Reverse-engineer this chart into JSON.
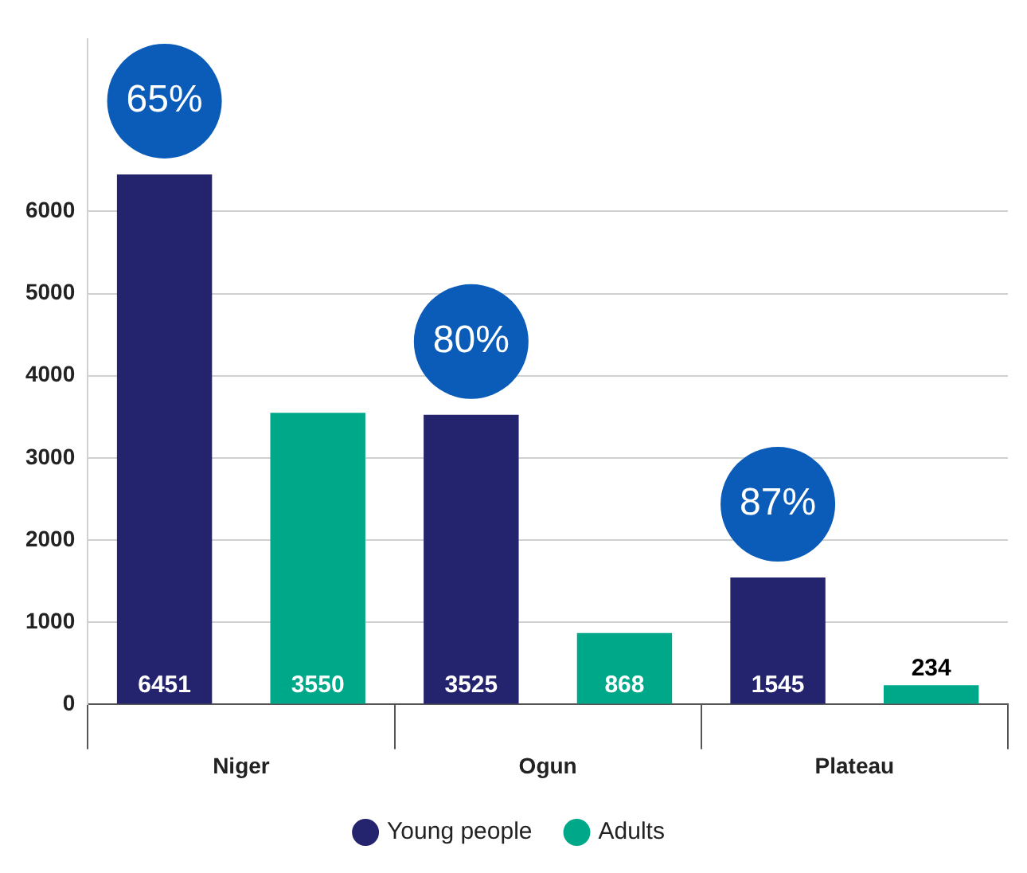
{
  "chart_data": {
    "type": "bar",
    "categories": [
      "Niger",
      "Ogun",
      "Plateau"
    ],
    "series": [
      {
        "name": "Young people",
        "color": "#24236e",
        "values": [
          6451,
          3525,
          1545
        ]
      },
      {
        "name": "Adults",
        "color": "#00a88a",
        "values": [
          3550,
          868,
          234
        ]
      }
    ],
    "ylim": [
      0,
      8100
    ],
    "yticks": [
      0,
      1000,
      2000,
      3000,
      4000,
      5000,
      6000
    ],
    "grid": "y",
    "legend": "bottom",
    "data_labels": true,
    "annotations": [
      "65%",
      "80%",
      "87%"
    ]
  }
}
